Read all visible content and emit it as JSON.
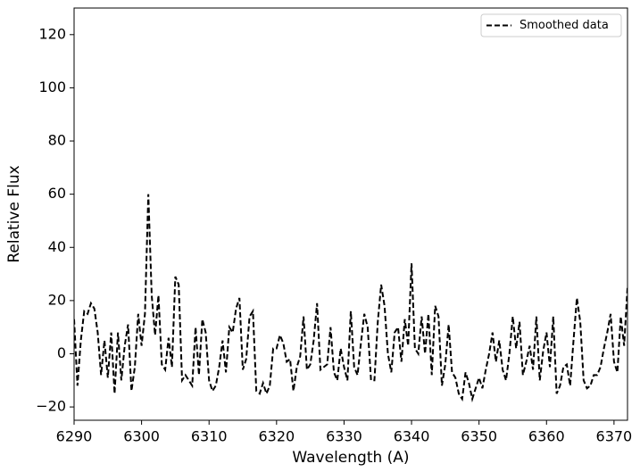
{
  "chart_data": {
    "type": "line",
    "xlabel": "Wavelength (A)",
    "ylabel": "Relative Flux",
    "xlim": [
      6290,
      6372
    ],
    "ylim": [
      -25,
      130
    ],
    "xticks": [
      6290,
      6300,
      6310,
      6320,
      6330,
      6340,
      6350,
      6360,
      6370
    ],
    "yticks": [
      {
        "value": -20,
        "label": "−20"
      },
      0,
      20,
      40,
      60,
      80,
      100,
      120
    ],
    "legend": "upper right",
    "x": [
      6290,
      6290.5,
      6291,
      6291.5,
      6292,
      6292.5,
      6293,
      6293.5,
      6294,
      6294.5,
      6295,
      6295.5,
      6296,
      6296.5,
      6297,
      6297.5,
      6298,
      6298.5,
      6299,
      6299.5,
      6300,
      6300.5,
      6301,
      6301.5,
      6302,
      6302.5,
      6303,
      6303.5,
      6304,
      6304.5,
      6305,
      6305.5,
      6306,
      6306.5,
      6307,
      6307.5,
      6308,
      6308.5,
      6309,
      6309.5,
      6310,
      6310.5,
      6311,
      6311.5,
      6312,
      6312.5,
      6313,
      6313.5,
      6314,
      6314.5,
      6315,
      6315.5,
      6316,
      6316.5,
      6317,
      6317.5,
      6318,
      6318.5,
      6319,
      6319.5,
      6320,
      6320.5,
      6321,
      6321.5,
      6322,
      6322.5,
      6323,
      6323.5,
      6324,
      6324.5,
      6325,
      6325.5,
      6326,
      6326.5,
      6327,
      6327.5,
      6328,
      6328.5,
      6329,
      6329.5,
      6330,
      6330.5,
      6331,
      6331.5,
      6332,
      6332.5,
      6333,
      6333.5,
      6334,
      6334.5,
      6335,
      6335.5,
      6336,
      6336.5,
      6337,
      6337.5,
      6338,
      6338.5,
      6339,
      6339.5,
      6340,
      6340.5,
      6341,
      6341.5,
      6342,
      6342.5,
      6343,
      6343.5,
      6344,
      6344.5,
      6345,
      6345.5,
      6346,
      6346.5,
      6347,
      6347.5,
      6348,
      6348.5,
      6349,
      6349.5,
      6350,
      6350.5,
      6351,
      6351.5,
      6352,
      6352.5,
      6353,
      6353.5,
      6354,
      6354.5,
      6355,
      6355.5,
      6356,
      6356.5,
      6357,
      6357.5,
      6358,
      6358.5,
      6359,
      6359.5,
      6360,
      6360.5,
      6361,
      6361.5,
      6362,
      6362.5,
      6363,
      6363.5,
      6364,
      6364.5,
      6365,
      6365.5,
      6366,
      6366.5,
      6367,
      6367.5,
      6368,
      6368.5,
      6369,
      6369.5,
      6370,
      6370.5,
      6371,
      6371.5,
      6372
    ],
    "series": [
      {
        "name": "Smoothed data",
        "color": "#000000",
        "dash": true,
        "values": [
          13,
          -12,
          5,
          16,
          15,
          19,
          17,
          8,
          -8,
          5,
          -9,
          8,
          -15,
          8,
          -10,
          3,
          11,
          -14,
          -5,
          15,
          3,
          15,
          60,
          22,
          7,
          22,
          -4,
          -6,
          6,
          -5,
          29,
          26,
          -10,
          -8,
          -10,
          -12,
          10,
          -8,
          13,
          8,
          -10,
          -14,
          -12,
          -5,
          5,
          -7,
          10,
          8,
          17,
          21,
          -6,
          -2,
          14,
          16,
          -14,
          -15,
          -11,
          -15,
          -12,
          2,
          2,
          7,
          4,
          -3,
          -2,
          -14,
          -5,
          -1,
          14,
          -6,
          -4,
          5,
          19,
          -6,
          -5,
          -4,
          10,
          -7,
          -10,
          2,
          -5,
          -10,
          16,
          -5,
          -8,
          4,
          15,
          10,
          -10,
          -10,
          12,
          26,
          18,
          0,
          -7,
          8,
          10,
          -3,
          13,
          3,
          34,
          2,
          0,
          14,
          0,
          15,
          -8,
          18,
          14,
          -12,
          -4,
          11,
          -7,
          -9,
          -15,
          -17,
          -7,
          -11,
          -17,
          -13,
          -9,
          -13,
          -6,
          0,
          8,
          -3,
          5,
          -6,
          -10,
          0,
          14,
          2,
          12,
          -8,
          -3,
          3,
          -6,
          14,
          -10,
          1,
          8,
          -5,
          14,
          -15,
          -12,
          -5,
          -4,
          -12,
          5,
          21,
          12,
          -10,
          -13,
          -12,
          -8,
          -8,
          -5,
          2,
          8,
          15,
          -3,
          -7,
          14,
          3,
          25
        ]
      }
    ]
  }
}
